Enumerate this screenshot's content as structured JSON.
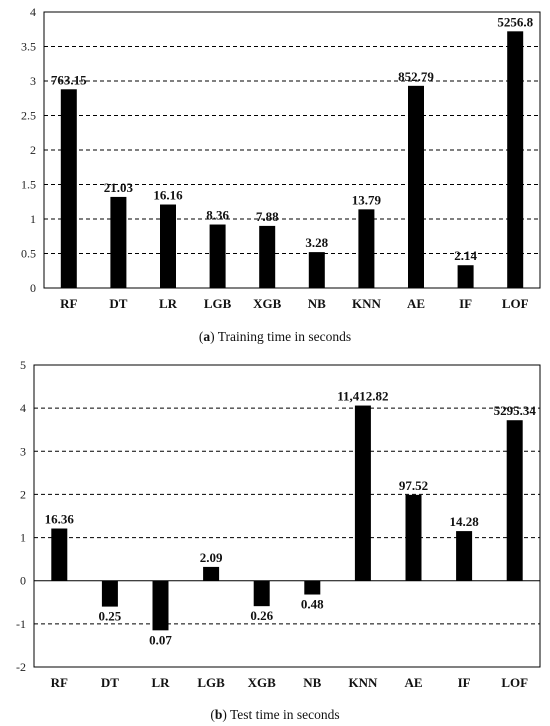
{
  "chart_data": [
    {
      "type": "bar",
      "caption": {
        "letter": "a",
        "text": " Training time in seconds"
      },
      "categories": [
        "RF",
        "DT",
        "LR",
        "LGB",
        "XGB",
        "NB",
        "KNN",
        "AE",
        "IF",
        "LOF"
      ],
      "values": [
        2.88,
        1.32,
        1.21,
        0.92,
        0.9,
        0.52,
        1.14,
        2.93,
        0.33,
        3.72
      ],
      "data_labels": [
        "763.15",
        "21.03",
        "16.16",
        "8.36",
        "7.88",
        "3.28",
        "13.79",
        "852.79",
        "2.14",
        "5256.8"
      ],
      "ylim": [
        0,
        4
      ],
      "yticks": [
        0,
        0.5,
        1,
        1.5,
        2,
        2.5,
        3,
        3.5,
        4
      ],
      "ytick_labels": [
        "0",
        "0.5",
        "1",
        "1.5",
        "2",
        "2.5",
        "3",
        "3.5",
        "4"
      ],
      "grid": "horizontal dashed",
      "bar_color": "#000000"
    },
    {
      "type": "bar",
      "caption": {
        "letter": "b",
        "text": " Test time in seconds"
      },
      "categories": [
        "RF",
        "DT",
        "LR",
        "LGB",
        "XGB",
        "NB",
        "KNN",
        "AE",
        "IF",
        "LOF"
      ],
      "values": [
        1.21,
        -0.6,
        -1.15,
        0.32,
        -0.59,
        -0.32,
        4.06,
        1.99,
        1.15,
        3.72
      ],
      "data_labels": [
        "16.36",
        "0.25",
        "0.07",
        "2.09",
        "0.26",
        "0.48",
        "11,412.82",
        "97.52",
        "14.28",
        "5295.34"
      ],
      "ylim": [
        -2,
        5
      ],
      "yticks": [
        -2,
        -1,
        0,
        1,
        2,
        3,
        4,
        5
      ],
      "ytick_labels": [
        "-2",
        "-1",
        "0",
        "1",
        "2",
        "3",
        "4",
        "5"
      ],
      "grid": "horizontal dashed",
      "bar_color": "#000000"
    }
  ]
}
